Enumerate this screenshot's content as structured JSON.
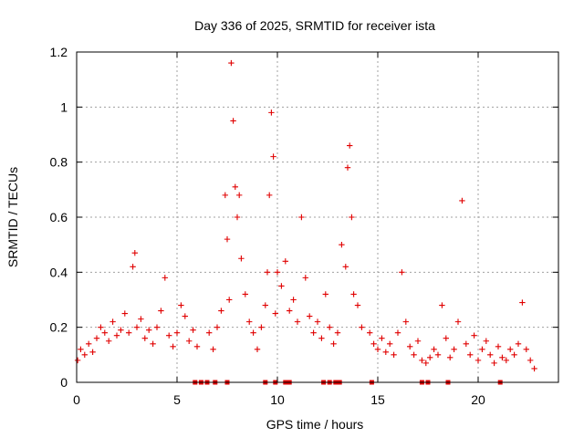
{
  "chart_data": {
    "type": "scatter",
    "title": "Day 336 of 2025, SRMTID for receiver ista",
    "xlabel": "GPS time / hours",
    "ylabel": "SRMTID / TECUs",
    "xlim": [
      0,
      24
    ],
    "ylim": [
      0,
      1.2
    ],
    "xticks": [
      0,
      5,
      10,
      15,
      20
    ],
    "xtick_labels": [
      "0",
      "5",
      "10",
      "15",
      "20"
    ],
    "yticks": [
      0,
      0.2,
      0.4,
      0.6,
      0.8,
      1.0,
      1.2
    ],
    "ytick_labels": [
      "0",
      "0.2",
      "0.4",
      "0.6",
      "0.8",
      "1",
      "1.2"
    ],
    "grid": true,
    "series": [
      {
        "name": "SRMTID",
        "marker": "plus",
        "color": "#e00000",
        "x": [
          0.05,
          0.2,
          0.4,
          0.6,
          0.8,
          1.0,
          1.2,
          1.4,
          1.6,
          1.8,
          2.0,
          2.2,
          2.4,
          2.6,
          2.8,
          2.9,
          3.0,
          3.2,
          3.4,
          3.6,
          3.8,
          4.0,
          4.2,
          4.4,
          4.6,
          4.8,
          5.0,
          5.2,
          5.4,
          5.6,
          5.8,
          6.0,
          6.6,
          6.8,
          7.0,
          7.2,
          7.4,
          7.5,
          7.6,
          7.7,
          7.8,
          7.9,
          8.0,
          8.1,
          8.2,
          8.4,
          8.6,
          8.8,
          9.0,
          9.2,
          9.4,
          9.5,
          9.6,
          9.7,
          9.8,
          9.9,
          10.0,
          10.2,
          10.4,
          10.6,
          10.8,
          11.0,
          11.2,
          11.4,
          11.6,
          11.8,
          12.0,
          12.2,
          12.4,
          12.6,
          12.8,
          13.0,
          13.2,
          13.4,
          13.5,
          13.6,
          13.7,
          13.8,
          14.0,
          14.2,
          14.6,
          14.8,
          15.0,
          15.2,
          15.4,
          15.6,
          15.8,
          16.0,
          16.2,
          16.4,
          16.6,
          16.8,
          17.0,
          17.2,
          17.4,
          17.6,
          17.8,
          18.0,
          18.2,
          18.4,
          18.6,
          18.8,
          19.0,
          19.2,
          19.4,
          19.6,
          19.8,
          20.0,
          20.2,
          20.4,
          20.6,
          20.8,
          21.0,
          21.2,
          21.4,
          21.6,
          21.8,
          22.0,
          22.2,
          22.4,
          22.6,
          22.8
        ],
        "y": [
          0.08,
          0.12,
          0.1,
          0.14,
          0.11,
          0.16,
          0.2,
          0.18,
          0.15,
          0.22,
          0.17,
          0.19,
          0.25,
          0.18,
          0.42,
          0.47,
          0.2,
          0.23,
          0.16,
          0.19,
          0.14,
          0.2,
          0.26,
          0.38,
          0.17,
          0.13,
          0.18,
          0.28,
          0.24,
          0.15,
          0.19,
          0.13,
          0.18,
          0.12,
          0.2,
          0.26,
          0.68,
          0.52,
          0.3,
          1.16,
          0.95,
          0.71,
          0.6,
          0.68,
          0.45,
          0.32,
          0.22,
          0.18,
          0.12,
          0.2,
          0.28,
          0.4,
          0.68,
          0.98,
          0.82,
          0.25,
          0.4,
          0.35,
          0.44,
          0.26,
          0.3,
          0.22,
          0.6,
          0.38,
          0.24,
          0.18,
          0.22,
          0.16,
          0.32,
          0.2,
          0.14,
          0.18,
          0.5,
          0.42,
          0.78,
          0.86,
          0.6,
          0.32,
          0.28,
          0.2,
          0.18,
          0.14,
          0.12,
          0.16,
          0.11,
          0.14,
          0.1,
          0.18,
          0.4,
          0.22,
          0.13,
          0.1,
          0.15,
          0.08,
          0.07,
          0.09,
          0.12,
          0.1,
          0.28,
          0.16,
          0.09,
          0.12,
          0.22,
          0.66,
          0.14,
          0.1,
          0.17,
          0.08,
          0.12,
          0.15,
          0.1,
          0.07,
          0.13,
          0.09,
          0.08,
          0.12,
          0.1,
          0.14,
          0.29,
          0.12,
          0.08,
          0.05
        ]
      }
    ],
    "gaps_at_zero": [
      5.9,
      6.2,
      6.5,
      6.9,
      7.5,
      9.4,
      9.9,
      10.4,
      10.6,
      12.3,
      12.6,
      12.9,
      13.1,
      14.7,
      17.2,
      17.5,
      18.5,
      21.1
    ]
  }
}
